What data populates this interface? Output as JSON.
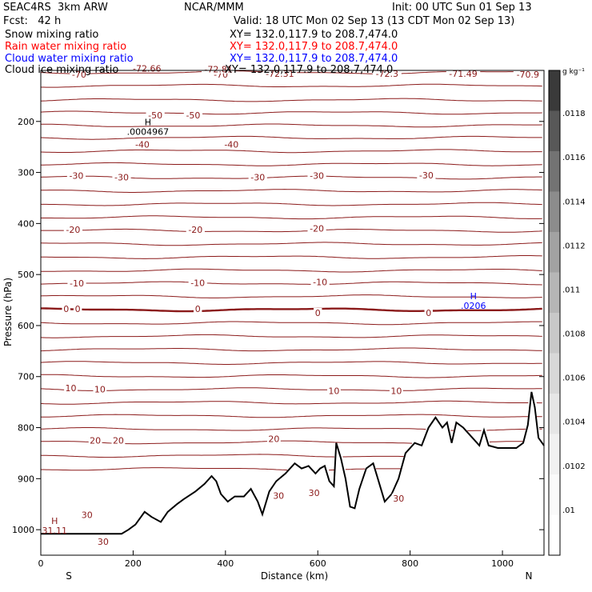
{
  "header": {
    "left_title": "SEAC4RS  3km ARW",
    "center_title": "NCAR/MMM",
    "init": "Init: 00 UTC Sun 01 Sep 13",
    "fcst": "Fcst:   42 h",
    "valid": "Valid: 18 UTC Mon 02 Sep 13 (13 CDT Mon 02 Sep 13)"
  },
  "fields": [
    {
      "name": "Snow mixing ratio",
      "xy": "XY= 132.0,117.9 to 208.7,474.0",
      "color": "#000000"
    },
    {
      "name": "Rain water mixing ratio",
      "xy": "XY= 132.0,117.9 to 208.7,474.0",
      "color": "#ff0000"
    },
    {
      "name": "Cloud water mixing ratio",
      "xy": "XY= 132.0,117.9 to 208.7,474.0",
      "color": "#0000ff"
    },
    {
      "name": "Cloud ice mixing ratio",
      "xy": "XY= 132.0,117.9 to 208.7,474.0",
      "color": "#000000"
    }
  ],
  "chart_data": {
    "type": "contour-cross-section",
    "xlabel": "Distance (km)",
    "ylabel": "Pressure (hPa)",
    "x_ticks": [
      0,
      200,
      400,
      600,
      800,
      1000
    ],
    "y_ticks": [
      200,
      300,
      400,
      500,
      600,
      700,
      800,
      900,
      1000
    ],
    "xlim": [
      0,
      1090
    ],
    "ylim_hpa": [
      100,
      1050
    ],
    "x_end_labels": {
      "left": "S",
      "right": "N"
    },
    "colorbar": {
      "unit": "g kg⁻¹",
      "tick_labels": [
        ".0118",
        ".0116",
        ".0114",
        ".0112",
        ".011",
        ".0108",
        ".0106",
        ".0104",
        ".0102",
        ".01"
      ],
      "shades": [
        "#3a3a3a",
        "#585858",
        "#737373",
        "#8c8c8c",
        "#a2a2a2",
        "#b6b6b6",
        "#c8c8c8",
        "#d8d8d8",
        "#e6e6e6",
        "#f1f1f1",
        "#fafafa",
        "#ffffff"
      ]
    },
    "isotherm_color": "#8b1a1a",
    "isotherm_levels": [
      {
        "p": 104,
        "label": null
      },
      {
        "p": 130,
        "label": null
      },
      {
        "p": 158,
        "label": null
      },
      {
        "p": 183,
        "label": "-50"
      },
      {
        "p": 208,
        "label": null
      },
      {
        "p": 232,
        "label": "-40"
      },
      {
        "p": 258,
        "label": null
      },
      {
        "p": 284,
        "label": null
      },
      {
        "p": 310,
        "label": "-30"
      },
      {
        "p": 336,
        "label": null
      },
      {
        "p": 362,
        "label": "-20"
      },
      {
        "p": 388,
        "label": null
      },
      {
        "p": 414,
        "label": null
      },
      {
        "p": 440,
        "label": "-10"
      },
      {
        "p": 466,
        "label": null
      },
      {
        "p": 492,
        "label": null
      },
      {
        "p": 517,
        "label": null
      },
      {
        "p": 543,
        "label": null
      },
      {
        "p": 569,
        "label": "0"
      },
      {
        "p": 595,
        "label": null
      },
      {
        "p": 621,
        "label": null
      },
      {
        "p": 647,
        "label": null
      },
      {
        "p": 673,
        "label": "10"
      },
      {
        "p": 699,
        "label": null
      },
      {
        "p": 725,
        "label": null
      },
      {
        "p": 751,
        "label": null
      },
      {
        "p": 777,
        "label": "20"
      },
      {
        "p": 803,
        "label": null
      },
      {
        "p": 829,
        "label": null
      },
      {
        "p": 855,
        "label": null
      },
      {
        "p": 881,
        "label": "30"
      }
    ],
    "contour_labels": [
      {
        "x": 83,
        "p": 108,
        "text": "-70"
      },
      {
        "x": 390,
        "p": 108,
        "text": "-70"
      },
      {
        "x": 1055,
        "p": 108,
        "text": "-70.9"
      },
      {
        "x": 230,
        "p": 96,
        "text": "-72.66"
      },
      {
        "x": 385,
        "p": 98,
        "text": "-72.81"
      },
      {
        "x": 518,
        "p": 106,
        "text": "-72.31"
      },
      {
        "x": 750,
        "p": 106,
        "text": "-72.3"
      },
      {
        "x": 915,
        "p": 106,
        "text": "-71.49"
      },
      {
        "x": 248,
        "p": 188,
        "text": "-50"
      },
      {
        "x": 330,
        "p": 188,
        "text": "-50"
      },
      {
        "x": 220,
        "p": 245,
        "text": "-40"
      },
      {
        "x": 413,
        "p": 245,
        "text": "-40"
      },
      {
        "x": 77,
        "p": 306,
        "text": "-30"
      },
      {
        "x": 175,
        "p": 309,
        "text": "-30"
      },
      {
        "x": 470,
        "p": 309,
        "text": "-30"
      },
      {
        "x": 598,
        "p": 306,
        "text": "-30"
      },
      {
        "x": 835,
        "p": 305,
        "text": "-30"
      },
      {
        "x": 70,
        "p": 412,
        "text": "-20"
      },
      {
        "x": 335,
        "p": 412,
        "text": "-20"
      },
      {
        "x": 598,
        "p": 410,
        "text": "-20"
      },
      {
        "x": 78,
        "p": 517,
        "text": "-10"
      },
      {
        "x": 340,
        "p": 516,
        "text": "-10"
      },
      {
        "x": 605,
        "p": 515,
        "text": "-10"
      },
      {
        "x": 55,
        "p": 567,
        "text": "0"
      },
      {
        "x": 80,
        "p": 567,
        "text": "0"
      },
      {
        "x": 340,
        "p": 567,
        "text": "0"
      },
      {
        "x": 600,
        "p": 575,
        "text": "0"
      },
      {
        "x": 840,
        "p": 575,
        "text": "0"
      },
      {
        "x": 65,
        "p": 722,
        "text": "10"
      },
      {
        "x": 128,
        "p": 725,
        "text": "10"
      },
      {
        "x": 635,
        "p": 728,
        "text": "10"
      },
      {
        "x": 770,
        "p": 728,
        "text": "10"
      },
      {
        "x": 118,
        "p": 825,
        "text": "20"
      },
      {
        "x": 168,
        "p": 825,
        "text": "20"
      },
      {
        "x": 505,
        "p": 822,
        "text": "20"
      },
      {
        "x": 100,
        "p": 971,
        "text": "30"
      },
      {
        "x": 515,
        "p": 933,
        "text": "30"
      },
      {
        "x": 592,
        "p": 928,
        "text": "30"
      },
      {
        "x": 775,
        "p": 939,
        "text": "30"
      },
      {
        "x": 135,
        "p": 1023,
        "text": "30"
      }
    ],
    "markers": [
      {
        "type": "H",
        "x": 232,
        "p": 207,
        "value": ".0004967",
        "color": "#000000"
      },
      {
        "type": "H",
        "x": 937,
        "p": 548,
        "value": ".0206",
        "color": "#0000ff"
      },
      {
        "type": "H",
        "x": 30,
        "p": 989,
        "value": "31.11",
        "color": "#8b1a1a"
      }
    ],
    "terrain_pressure": {
      "x": [
        0,
        175,
        190,
        205,
        225,
        240,
        260,
        275,
        295,
        310,
        335,
        355,
        370,
        380,
        390,
        405,
        420,
        440,
        455,
        470,
        480,
        495,
        510,
        530,
        550,
        565,
        580,
        595,
        605,
        615,
        625,
        635,
        640,
        650,
        660,
        670,
        680,
        690,
        705,
        720,
        730,
        745,
        760,
        775,
        790,
        810,
        825,
        840,
        855,
        870,
        880,
        890,
        900,
        915,
        925,
        935,
        950,
        960,
        970,
        990,
        1010,
        1030,
        1045,
        1055,
        1063,
        1070,
        1078,
        1090
      ],
      "p": [
        1008,
        1008,
        1000,
        990,
        965,
        975,
        985,
        965,
        950,
        940,
        925,
        910,
        895,
        905,
        930,
        945,
        935,
        935,
        920,
        945,
        970,
        925,
        905,
        890,
        870,
        880,
        875,
        890,
        880,
        875,
        905,
        915,
        830,
        860,
        900,
        955,
        958,
        920,
        880,
        870,
        900,
        945,
        930,
        900,
        850,
        830,
        835,
        800,
        780,
        800,
        790,
        830,
        790,
        800,
        810,
        820,
        835,
        805,
        835,
        840,
        840,
        840,
        830,
        795,
        730,
        760,
        820,
        835
      ]
    }
  }
}
